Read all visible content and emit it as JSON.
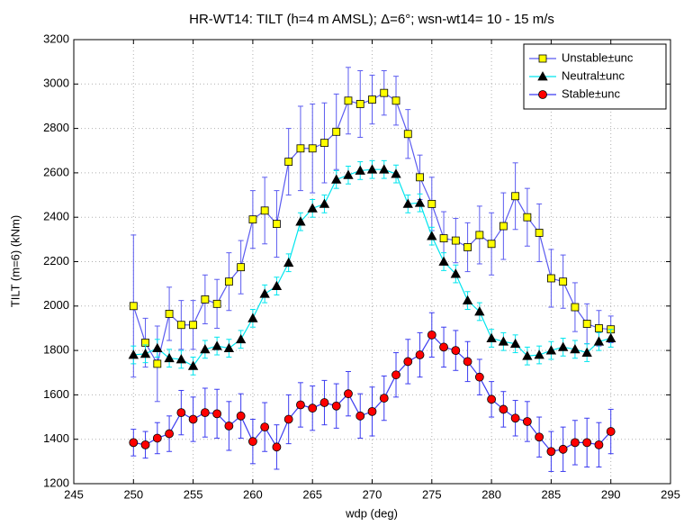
{
  "chart_data": {
    "type": "errorbar-line",
    "title": "HR-WT14: TILT (h=4 m AMSL); Δ=6°; wsn-wt14= 10 - 15 m/s",
    "x_label": "wdp (deg)",
    "y_label": "TILT (m=6) (kNm)",
    "x": [
      250,
      251,
      252,
      253,
      254,
      255,
      256,
      257,
      258,
      259,
      260,
      261,
      262,
      263,
      264,
      265,
      266,
      267,
      268,
      269,
      270,
      271,
      272,
      273,
      274,
      275,
      276,
      277,
      278,
      279,
      280,
      281,
      282,
      283,
      284,
      285,
      286,
      287,
      288,
      289,
      290
    ],
    "series": [
      {
        "name": "Unstable±unc",
        "color": "#5b5bf0",
        "marker": "square",
        "marker_color": "#ffff00",
        "values": [
          2000,
          1835,
          1740,
          1965,
          1915,
          1915,
          2030,
          2010,
          2110,
          2175,
          2390,
          2430,
          2370,
          2650,
          2710,
          2710,
          2735,
          2785,
          2925,
          2910,
          2930,
          2960,
          2925,
          2775,
          2580,
          2460,
          2305,
          2295,
          2265,
          2320,
          2280,
          2360,
          2495,
          2400,
          2330,
          2125,
          2110,
          1995,
          1920,
          1900,
          1895
        ],
        "errors": [
          320,
          110,
          170,
          120,
          110,
          110,
          110,
          110,
          130,
          120,
          130,
          150,
          150,
          150,
          190,
          200,
          180,
          170,
          150,
          150,
          110,
          100,
          110,
          110,
          100,
          120,
          120,
          100,
          110,
          130,
          140,
          150,
          150,
          130,
          130,
          130,
          120,
          110,
          90,
          80,
          60
        ]
      },
      {
        "name": "Neutral±unc",
        "color": "#00e5ee",
        "marker": "triangle",
        "marker_color": "#000000",
        "values": [
          1780,
          1785,
          1810,
          1765,
          1760,
          1730,
          1805,
          1820,
          1810,
          1850,
          1945,
          2055,
          2090,
          2195,
          2380,
          2440,
          2460,
          2570,
          2590,
          2610,
          2615,
          2615,
          2595,
          2460,
          2465,
          2315,
          2200,
          2145,
          2025,
          1975,
          1855,
          1840,
          1830,
          1775,
          1780,
          1800,
          1815,
          1805,
          1790,
          1840,
          1855
        ],
        "errors": [
          40,
          40,
          40,
          40,
          40,
          40,
          40,
          40,
          40,
          40,
          40,
          40,
          40,
          40,
          40,
          40,
          40,
          40,
          40,
          40,
          40,
          40,
          40,
          40,
          40,
          40,
          40,
          40,
          40,
          40,
          40,
          40,
          40,
          40,
          40,
          40,
          40,
          40,
          40,
          40,
          40
        ]
      },
      {
        "name": "Stable±unc",
        "color": "#3b3bf0",
        "marker": "circle",
        "marker_color": "#ff0000",
        "values": [
          1385,
          1375,
          1405,
          1425,
          1520,
          1490,
          1520,
          1515,
          1460,
          1505,
          1390,
          1455,
          1365,
          1490,
          1555,
          1540,
          1565,
          1550,
          1605,
          1505,
          1525,
          1585,
          1690,
          1750,
          1780,
          1870,
          1815,
          1800,
          1750,
          1680,
          1580,
          1535,
          1495,
          1480,
          1410,
          1345,
          1355,
          1385,
          1385,
          1375,
          1435
        ],
        "errors": [
          60,
          60,
          70,
          80,
          100,
          100,
          110,
          110,
          110,
          100,
          100,
          110,
          100,
          110,
          100,
          100,
          100,
          100,
          100,
          100,
          110,
          100,
          100,
          100,
          100,
          100,
          90,
          90,
          90,
          80,
          80,
          80,
          80,
          90,
          90,
          90,
          100,
          100,
          110,
          100,
          100
        ]
      }
    ],
    "xlim": [
      245,
      295
    ],
    "xticks": [
      245,
      250,
      255,
      260,
      265,
      270,
      275,
      280,
      285,
      290,
      295
    ],
    "ylim": [
      1200,
      3200
    ],
    "yticks": [
      1200,
      1400,
      1600,
      1800,
      2000,
      2200,
      2400,
      2600,
      2800,
      3000,
      3200
    ],
    "grid": true,
    "legend": "upper right"
  }
}
